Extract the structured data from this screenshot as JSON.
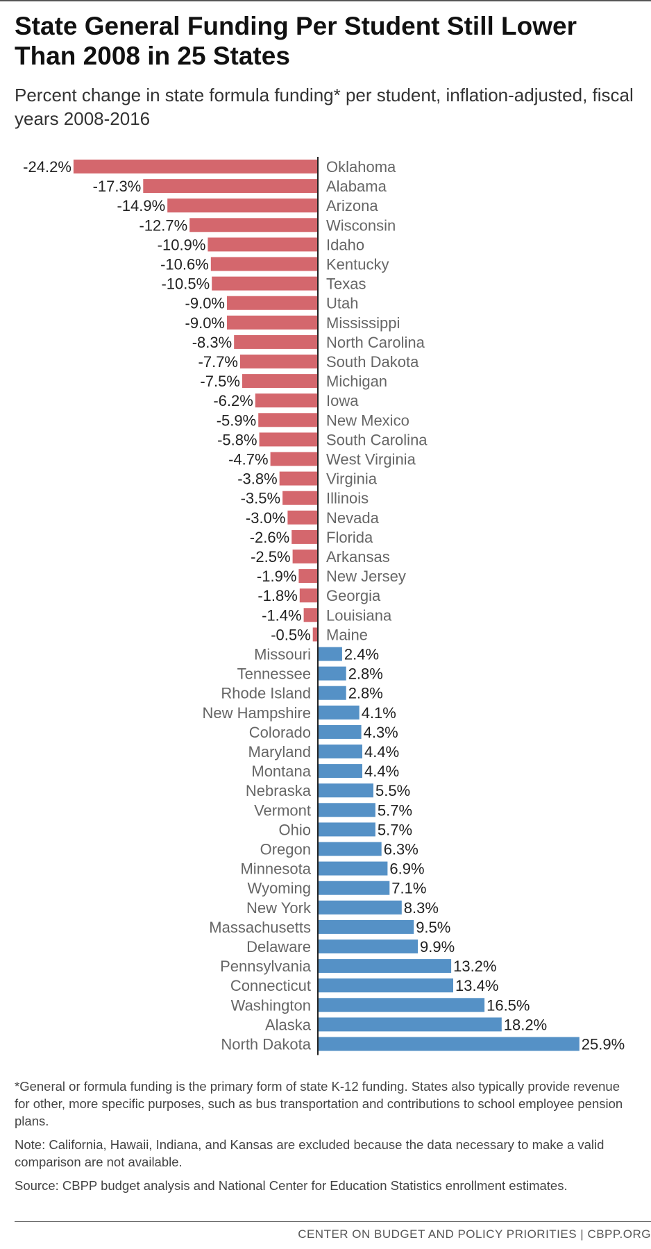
{
  "title": "State General Funding Per Student Still Lower Than 2008 in 25 States",
  "subtitle": "Percent change in state formula funding* per student, inflation-adjusted, fiscal years 2008-2016",
  "colors": {
    "negative": "#d4676d",
    "positive": "#5591c6",
    "axis": "#222222"
  },
  "chart_data": {
    "type": "bar",
    "orientation": "horizontal",
    "grid": false,
    "legend": "none",
    "xlim": [
      -25,
      28
    ],
    "categories": [
      "Oklahoma",
      "Alabama",
      "Arizona",
      "Wisconsin",
      "Idaho",
      "Kentucky",
      "Texas",
      "Utah",
      "Mississippi",
      "North Carolina",
      "South Dakota",
      "Michigan",
      "Iowa",
      "New Mexico",
      "South Carolina",
      "West Virginia",
      "Virginia",
      "Illinois",
      "Nevada",
      "Florida",
      "Arkansas",
      "New Jersey",
      "Georgia",
      "Louisiana",
      "Maine",
      "Missouri",
      "Tennessee",
      "Rhode Island",
      "New Hampshire",
      "Colorado",
      "Maryland",
      "Montana",
      "Nebraska",
      "Vermont",
      "Ohio",
      "Oregon",
      "Minnesota",
      "Wyoming",
      "New York",
      "Massachusetts",
      "Delaware",
      "Pennsylvania",
      "Connecticut",
      "Washington",
      "Alaska",
      "North Dakota"
    ],
    "values": [
      -24.2,
      -17.3,
      -14.9,
      -12.7,
      -10.9,
      -10.6,
      -10.5,
      -9.0,
      -9.0,
      -8.3,
      -7.7,
      -7.5,
      -6.2,
      -5.9,
      -5.8,
      -4.7,
      -3.8,
      -3.5,
      -3.0,
      -2.6,
      -2.5,
      -1.9,
      -1.8,
      -1.4,
      -0.5,
      2.4,
      2.8,
      2.8,
      4.1,
      4.3,
      4.4,
      4.4,
      5.5,
      5.7,
      5.7,
      6.3,
      6.9,
      7.1,
      8.3,
      9.5,
      9.9,
      13.2,
      13.4,
      16.5,
      18.2,
      25.9
    ],
    "labels": [
      "-24.2%",
      "-17.3%",
      "-14.9%",
      "-12.7%",
      "-10.9%",
      "-10.6%",
      "-10.5%",
      "-9.0%",
      "-9.0%",
      "-8.3%",
      "-7.7%",
      "-7.5%",
      "-6.2%",
      "-5.9%",
      "-5.8%",
      "-4.7%",
      "-3.8%",
      "-3.5%",
      "-3.0%",
      "-2.6%",
      "-2.5%",
      "-1.9%",
      "-1.8%",
      "-1.4%",
      "-0.5%",
      "2.4%",
      "2.8%",
      "2.8%",
      "4.1%",
      "4.3%",
      "4.4%",
      "4.4%",
      "5.5%",
      "5.7%",
      "5.7%",
      "6.3%",
      "6.9%",
      "7.1%",
      "8.3%",
      "9.5%",
      "9.9%",
      "13.2%",
      "13.4%",
      "16.5%",
      "18.2%",
      "25.9%"
    ]
  },
  "footnotes": [
    "*General or formula funding is the primary form of state K-12 funding.  States also typically provide revenue for other, more specific purposes, such as bus transportation and contributions to school employee pension plans.",
    "Note: California, Hawaii, Indiana, and Kansas are excluded because the data necessary to make a valid comparison are not available.",
    "Source: CBPP budget analysis and National Center for Education Statistics enrollment estimates."
  ],
  "brand": "CENTER ON BUDGET AND POLICY PRIORITIES | CBPP.ORG"
}
